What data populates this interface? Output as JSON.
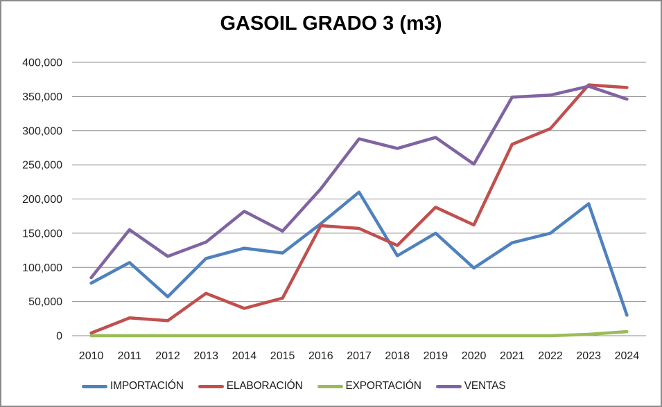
{
  "chart_data": {
    "type": "line",
    "title": "GASOIL GRADO 3 (m3)",
    "categories": [
      "2010",
      "2011",
      "2012",
      "2013",
      "2014",
      "2015",
      "2016",
      "2017",
      "2018",
      "2019",
      "2020",
      "2021",
      "2022",
      "2023",
      "2024"
    ],
    "series": [
      {
        "name": "IMPORTACIÓN",
        "color": "#4F81BD",
        "values": [
          77000,
          107000,
          57000,
          113000,
          128000,
          121000,
          164000,
          210000,
          117000,
          150000,
          99000,
          136000,
          150000,
          193000,
          30000
        ]
      },
      {
        "name": "ELABORACIÓN",
        "color": "#C0504D",
        "values": [
          4000,
          26000,
          22000,
          62000,
          40000,
          55000,
          161000,
          157000,
          132000,
          188000,
          162000,
          280000,
          303000,
          367000,
          363000
        ]
      },
      {
        "name": "EXPORTACIÓN",
        "color": "#9BBB59",
        "values": [
          0,
          0,
          0,
          0,
          0,
          0,
          0,
          0,
          0,
          0,
          0,
          0,
          0,
          2000,
          6000
        ]
      },
      {
        "name": "VENTAS",
        "color": "#8064A2",
        "values": [
          85000,
          155000,
          116000,
          137000,
          182000,
          153000,
          215000,
          288000,
          274000,
          290000,
          251000,
          349000,
          352000,
          365000,
          346000
        ]
      }
    ],
    "xlabel": "",
    "ylabel": "",
    "ylim": [
      0,
      400000
    ],
    "ytick_step": 50000,
    "ytick_labels": [
      "0",
      "50,000",
      "100,000",
      "150,000",
      "200,000",
      "250,000",
      "300,000",
      "350,000",
      "400,000"
    ],
    "grid": "horizontal gridlines on",
    "gridline_color": "#8e8e8e",
    "legend_position": "bottom-left",
    "frame_color": "#8a8a8a",
    "text_color": "#1f1f1f"
  }
}
